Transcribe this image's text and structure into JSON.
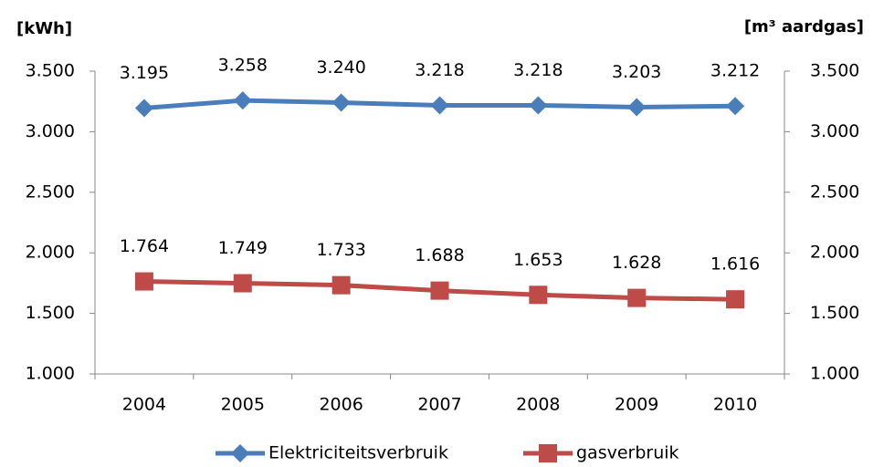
{
  "chart_data": {
    "type": "line",
    "y_axis_title": "[kWh]",
    "y2_axis_title": "[m³ aardgas]",
    "categories": [
      "2004",
      "2005",
      "2006",
      "2007",
      "2008",
      "2009",
      "2010"
    ],
    "series": [
      {
        "name": "Elektriciteitsverbruik",
        "color": "#4a7ebb",
        "marker": "diamond",
        "values": [
          3195,
          3258,
          3240,
          3218,
          3218,
          3203,
          3212
        ],
        "value_labels": [
          "3.195",
          "3.258",
          "3.240",
          "3.218",
          "3.218",
          "3.203",
          "3.212"
        ]
      },
      {
        "name": "gasverbruik",
        "color": "#be4b48",
        "marker": "square",
        "axis": "y2",
        "values": [
          1764,
          1749,
          1733,
          1688,
          1653,
          1628,
          1616
        ],
        "value_labels": [
          "1.764",
          "1.749",
          "1.733",
          "1.688",
          "1.653",
          "1.628",
          "1.616"
        ]
      }
    ],
    "ylim": [
      1000,
      3500
    ],
    "yticks": [
      {
        "value": 1000,
        "label": "1.000"
      },
      {
        "value": 1500,
        "label": "1.500"
      },
      {
        "value": 2000,
        "label": "2.000"
      },
      {
        "value": 2500,
        "label": "2.500"
      },
      {
        "value": 3000,
        "label": "3.000"
      },
      {
        "value": 3500,
        "label": "3.500"
      }
    ],
    "y2lim": [
      1000,
      3500
    ],
    "y2ticks": [
      {
        "value": 1000,
        "label": "1.000"
      },
      {
        "value": 1500,
        "label": "1.500"
      },
      {
        "value": 2000,
        "label": "2.000"
      },
      {
        "value": 2500,
        "label": "2.500"
      },
      {
        "value": 3000,
        "label": "3.000"
      },
      {
        "value": 3500,
        "label": "3.500"
      }
    ],
    "grid": false,
    "legend": "bottom"
  }
}
